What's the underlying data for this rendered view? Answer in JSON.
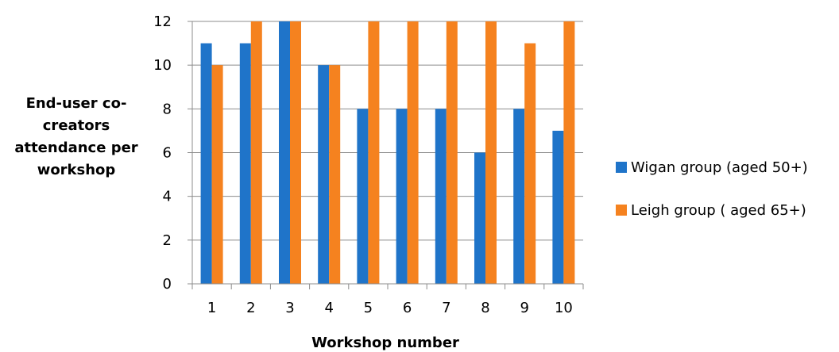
{
  "chart_data": {
    "type": "bar",
    "title": "",
    "xlabel": "Workshop number",
    "ylabel_lines": [
      "End-user co-",
      "creators",
      "attendance per",
      "workshop"
    ],
    "categories": [
      "1",
      "2",
      "3",
      "4",
      "5",
      "6",
      "7",
      "8",
      "9",
      "10"
    ],
    "series": [
      {
        "name": "Wigan group (aged 50+)",
        "color": "#1f74c9",
        "values": [
          11,
          11,
          12,
          10,
          8,
          8,
          8,
          6,
          8,
          7
        ]
      },
      {
        "name": "Leigh group ( aged 65+)",
        "color": "#f5821f",
        "values": [
          10,
          12,
          12,
          10,
          12,
          12,
          12,
          12,
          11,
          12
        ]
      }
    ],
    "ylim": [
      0,
      12
    ],
    "yticks": [
      0,
      2,
      4,
      6,
      8,
      10,
      12
    ],
    "grid": true,
    "legend_position": "right"
  }
}
